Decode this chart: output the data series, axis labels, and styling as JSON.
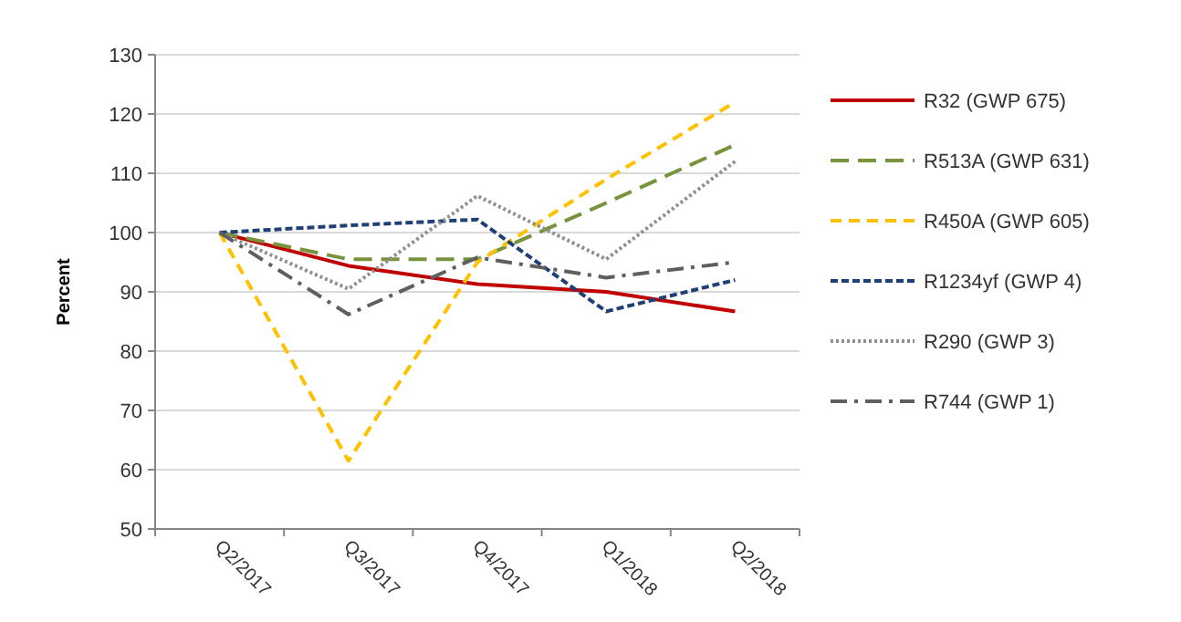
{
  "chart_data": {
    "type": "line",
    "ylabel": "Percent",
    "categories": [
      "Q2/2017",
      "Q3/2017",
      "Q4/2017",
      "Q1/2018",
      "Q2/2018"
    ],
    "series": [
      {
        "name": "R32 (GWP 675)",
        "color": "#c00000",
        "line_style": "solid",
        "values": [
          100,
          94.4,
          91.3,
          90,
          86.7
        ]
      },
      {
        "name": "R513A (GWP 631)",
        "color": "#77933c",
        "line_style": "dashed",
        "values": [
          100,
          95.5,
          95.5,
          105,
          114.8
        ]
      },
      {
        "name": "R450A (GWP 605)",
        "color": "#ffc000",
        "line_style": "dashed",
        "values": [
          100,
          61.5,
          95,
          109,
          122
        ]
      },
      {
        "name": "R1234yf (GWP 4)",
        "color": "#1f3f77",
        "line_style": "dashed",
        "values": [
          100,
          101.2,
          102.2,
          86.7,
          92
        ]
      },
      {
        "name": "R290 (GWP 3)",
        "color": "#909090",
        "line_style": "dotted",
        "values": [
          100,
          90.5,
          106.2,
          95.5,
          112
        ]
      },
      {
        "name": "R744 (GWP 1)",
        "color": "#5f5f5f",
        "line_style": "dashdot",
        "values": [
          100,
          86.2,
          95.8,
          92.4,
          95
        ]
      }
    ],
    "ylim": [
      50,
      130
    ],
    "yticks": [
      50,
      60,
      70,
      80,
      90,
      100,
      110,
      120,
      130
    ],
    "grid": "y",
    "legend": "right",
    "marker": "none"
  }
}
